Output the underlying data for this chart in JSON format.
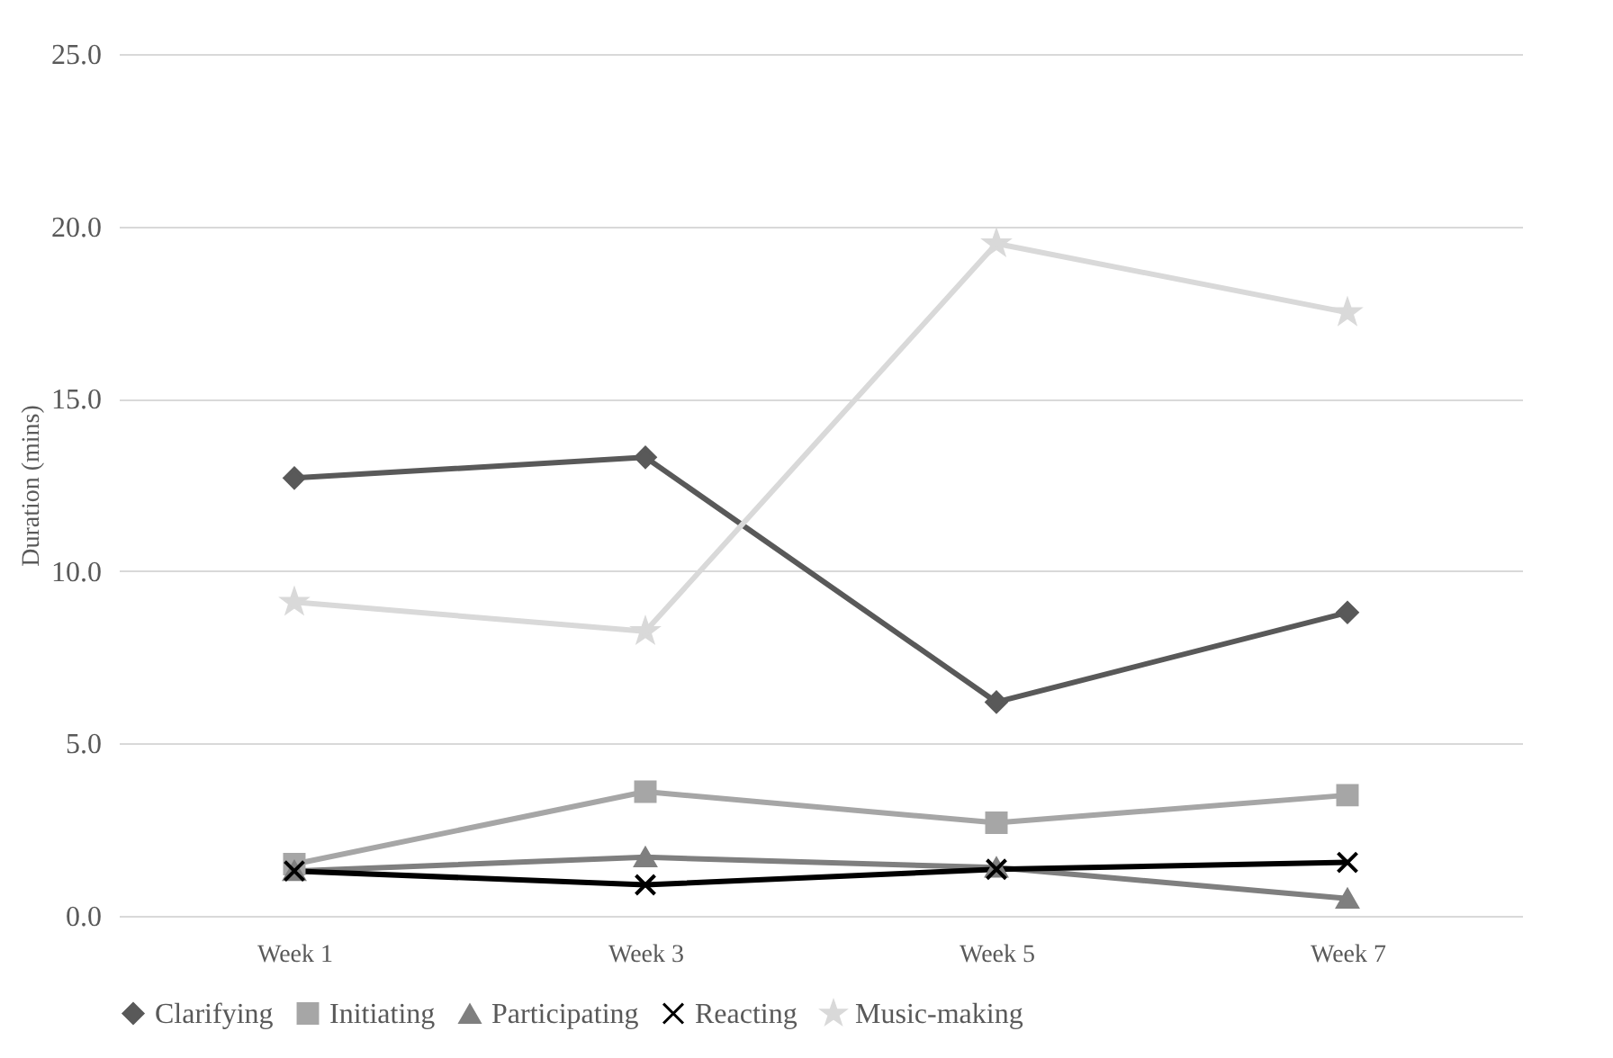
{
  "chart_data": {
    "type": "line",
    "ylabel": "Duration (mins)",
    "categories": [
      "Week 1",
      "Week 3",
      "Week 5",
      "Week 7"
    ],
    "ylim": [
      0,
      25
    ],
    "yticks": [
      {
        "value": 0,
        "label": "0.0"
      },
      {
        "value": 5,
        "label": "5.0"
      },
      {
        "value": 10,
        "label": "10.0"
      },
      {
        "value": 15,
        "label": "15.0"
      },
      {
        "value": 20,
        "label": "20.0"
      },
      {
        "value": 25,
        "label": "25.0"
      }
    ],
    "grid": "y",
    "legend": "bottom",
    "line_style": "solid",
    "series": [
      {
        "name": "Clarifying",
        "color": "#595959",
        "marker": "diamond",
        "values": [
          12.7,
          13.3,
          6.2,
          8.8
        ]
      },
      {
        "name": "Initiating",
        "color": "#a6a6a6",
        "marker": "square",
        "values": [
          1.5,
          3.6,
          2.7,
          3.5
        ]
      },
      {
        "name": "Participating",
        "color": "#7f7f7f",
        "marker": "triangle",
        "values": [
          1.3,
          1.7,
          1.4,
          0.5
        ]
      },
      {
        "name": "Reacting",
        "color": "#000000",
        "marker": "cross",
        "values": [
          1.3,
          0.9,
          1.35,
          1.55
        ]
      },
      {
        "name": "Music-making",
        "color": "#d9d9d9",
        "marker": "star",
        "values": [
          9.1,
          8.25,
          19.5,
          17.5
        ]
      }
    ]
  }
}
